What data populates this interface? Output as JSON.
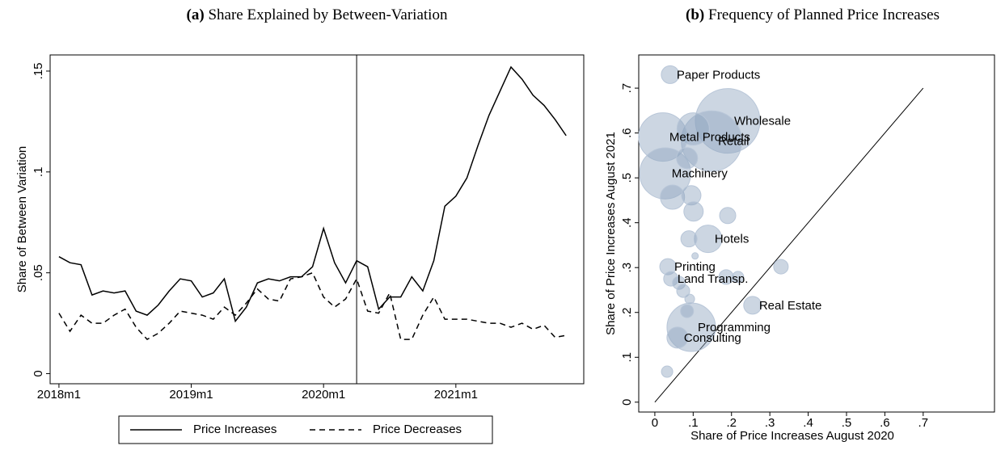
{
  "chart_data": [
    {
      "type": "line",
      "label": "(a)",
      "title": "Share Explained by Between-Variation",
      "y_label": "Share of Between Variation",
      "x": [
        0,
        1,
        2,
        3,
        4,
        5,
        6,
        7,
        8,
        9,
        10,
        11,
        12,
        13,
        14,
        15,
        16,
        17,
        18,
        19,
        20,
        21,
        22,
        23,
        24,
        25,
        26,
        27,
        28,
        29,
        30,
        31,
        32,
        33,
        34,
        35,
        36,
        37,
        38,
        39,
        40,
        41,
        42,
        43,
        44,
        45,
        46
      ],
      "xlim": [
        -0.8,
        47.6
      ],
      "xticks": [
        {
          "value": 0,
          "label": "2018m1"
        },
        {
          "value": 12,
          "label": "2019m1"
        },
        {
          "value": 24,
          "label": "2020m1"
        },
        {
          "value": 36,
          "label": "2021m1"
        }
      ],
      "ylim": [
        -0.005,
        0.158
      ],
      "yticks": [
        {
          "value": 0,
          "label": "0"
        },
        {
          "value": 0.05,
          "label": ".05"
        },
        {
          "value": 0.1,
          "label": ".1"
        },
        {
          "value": 0.15,
          "label": ".15"
        }
      ],
      "vline": 27,
      "legend": "bottom",
      "series": [
        {
          "name": "Price Increases",
          "color": "#000000",
          "dash": "solid",
          "values": [
            0.058,
            0.055,
            0.054,
            0.039,
            0.041,
            0.04,
            0.041,
            0.031,
            0.029,
            0.034,
            0.041,
            0.047,
            0.046,
            0.038,
            0.04,
            0.047,
            0.026,
            0.033,
            0.045,
            0.047,
            0.046,
            0.048,
            0.048,
            0.053,
            0.072,
            0.055,
            0.045,
            0.056,
            0.053,
            0.032,
            0.038,
            0.038,
            0.048,
            0.041,
            0.056,
            0.083,
            0.088,
            0.097,
            0.113,
            0.128,
            0.14,
            0.152,
            0.146,
            0.138,
            0.133,
            0.126,
            0.118
          ]
        },
        {
          "name": "Price Decreases",
          "color": "#000000",
          "dash": "dashed",
          "values": [
            0.03,
            0.021,
            0.029,
            0.025,
            0.025,
            0.029,
            0.032,
            0.023,
            0.017,
            0.02,
            0.025,
            0.031,
            0.03,
            0.029,
            0.027,
            0.033,
            0.029,
            0.035,
            0.042,
            0.037,
            0.036,
            0.047,
            0.048,
            0.05,
            0.038,
            0.033,
            0.037,
            0.047,
            0.031,
            0.03,
            0.04,
            0.017,
            0.017,
            0.029,
            0.038,
            0.027,
            0.027,
            0.027,
            0.026,
            0.025,
            0.025,
            0.023,
            0.025,
            0.022,
            0.024,
            0.018,
            0.019
          ]
        }
      ]
    },
    {
      "type": "scatter",
      "label": "(b)",
      "title": "Frequency of Planned Price Increases",
      "x_label": "Share of Price Increases August 2020",
      "y_label": "Share of Price Increases August 2021",
      "xlim": [
        -0.042,
        0.886
      ],
      "ylim": [
        -0.022,
        0.774
      ],
      "xticks": [
        {
          "value": 0,
          "label": "0"
        },
        {
          "value": 0.1,
          "label": ".1"
        },
        {
          "value": 0.2,
          "label": ".2"
        },
        {
          "value": 0.3,
          "label": ".3"
        },
        {
          "value": 0.4,
          "label": ".4"
        },
        {
          "value": 0.5,
          "label": ".5"
        },
        {
          "value": 0.6,
          "label": ".6"
        },
        {
          "value": 0.7,
          "label": ".7"
        }
      ],
      "yticks": [
        {
          "value": 0,
          "label": "0"
        },
        {
          "value": 0.1,
          "label": ".1"
        },
        {
          "value": 0.2,
          "label": ".2"
        },
        {
          "value": 0.3,
          "label": ".3"
        },
        {
          "value": 0.4,
          "label": ".4"
        },
        {
          "value": 0.5,
          "label": ".5"
        },
        {
          "value": 0.6,
          "label": ".6"
        },
        {
          "value": 0.7,
          "label": ".7"
        }
      ],
      "diagonal": [
        0,
        0.7
      ],
      "color": "#8fa3bf",
      "label_color": "#1a476f",
      "x": [
        0.19,
        0.148,
        0.021,
        0.027,
        0.095,
        0.1,
        0.139,
        0.04,
        0.084,
        0.046,
        0.095,
        0.101,
        0.19,
        0.089,
        0.105,
        0.034,
        0.042,
        0.063,
        0.186,
        0.217,
        0.329,
        0.255,
        0.074,
        0.091,
        0.084,
        0.059,
        0.032
      ],
      "y": [
        0.627,
        0.582,
        0.591,
        0.51,
        0.167,
        0.609,
        0.364,
        0.73,
        0.544,
        0.457,
        0.461,
        0.425,
        0.416,
        0.364,
        0.326,
        0.302,
        0.275,
        0.266,
        0.279,
        0.279,
        0.302,
        0.216,
        0.248,
        0.23,
        0.203,
        0.144,
        0.068
      ],
      "sizes": [
        1600,
        1400,
        900,
        1000,
        900,
        400,
        289,
        121,
        169,
        225,
        144,
        144,
        100,
        100,
        16,
        100,
        81,
        64,
        81,
        49,
        81,
        121,
        64,
        36,
        64,
        169,
        49
      ],
      "labels": [
        "Wholesale",
        "Retail",
        "Metal Products",
        "Machinery",
        "Programming",
        null,
        "Hotels",
        "Paper Products",
        null,
        null,
        null,
        null,
        null,
        null,
        null,
        "Printing",
        "Land Transp.",
        null,
        null,
        null,
        null,
        "Real Estate",
        null,
        null,
        null,
        "Consulting",
        null
      ]
    }
  ]
}
